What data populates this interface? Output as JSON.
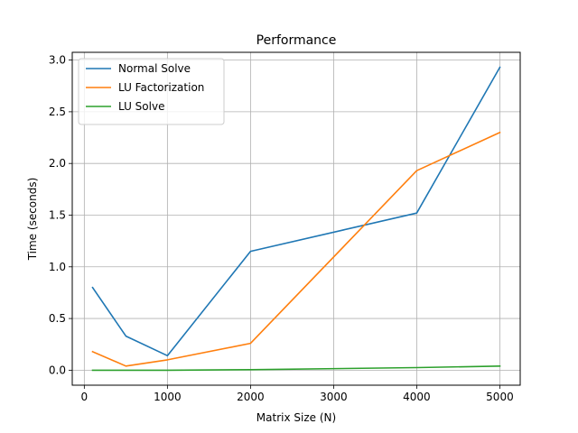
{
  "chart_data": {
    "type": "line",
    "title": "Performance",
    "xlabel": "Matrix Size (N)",
    "ylabel": "Time (seconds)",
    "x": [
      100,
      500,
      1000,
      2000,
      4000,
      5000
    ],
    "xlim": [
      -145,
      5245
    ],
    "ylim": [
      -0.145,
      3.075
    ],
    "xticks": [
      0,
      1000,
      2000,
      3000,
      4000,
      5000
    ],
    "xtick_labels": [
      "0",
      "1000",
      "2000",
      "3000",
      "4000",
      "5000"
    ],
    "yticks": [
      0.0,
      0.5,
      1.0,
      1.5,
      2.0,
      2.5,
      3.0
    ],
    "ytick_labels": [
      "0.0",
      "0.5",
      "1.0",
      "1.5",
      "2.0",
      "2.5",
      "3.0"
    ],
    "grid": true,
    "legend_position": "top-left",
    "series": [
      {
        "name": "Normal Solve",
        "color": "#1f77b4",
        "values": [
          0.8,
          0.33,
          0.14,
          1.15,
          1.52,
          2.93
        ]
      },
      {
        "name": "LU Factorization",
        "color": "#ff7f0e",
        "values": [
          0.18,
          0.04,
          0.1,
          0.26,
          1.93,
          2.3
        ]
      },
      {
        "name": "LU Solve",
        "color": "#2ca02c",
        "values": [
          0.0,
          0.0,
          0.0,
          0.005,
          0.025,
          0.04
        ]
      }
    ]
  }
}
